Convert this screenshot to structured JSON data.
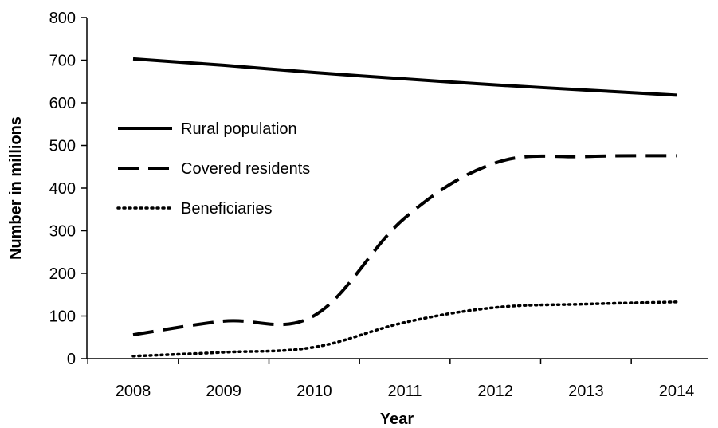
{
  "chart_data": {
    "type": "line",
    "xlabel": "Year",
    "ylabel": "Number in millions",
    "x": [
      "2008",
      "2009",
      "2010",
      "2011",
      "2012",
      "2013",
      "2014"
    ],
    "ylim": [
      0,
      800
    ],
    "yticks": [
      0,
      100,
      200,
      300,
      400,
      500,
      600,
      700,
      800
    ],
    "grid": false,
    "legend_position": "left",
    "series": [
      {
        "name": "Rural population",
        "style": "solid",
        "color": "#000000",
        "values": [
          703,
          688,
          671,
          656,
          642,
          630,
          618
        ]
      },
      {
        "name": "Covered residents",
        "style": "dashed",
        "color": "#000000",
        "values": [
          56,
          88,
          101,
          330,
          459,
          474,
          476
        ]
      },
      {
        "name": "Beneficiaries",
        "style": "dotted",
        "color": "#000000",
        "values": [
          6,
          15,
          27,
          85,
          120,
          128,
          133
        ]
      }
    ]
  }
}
